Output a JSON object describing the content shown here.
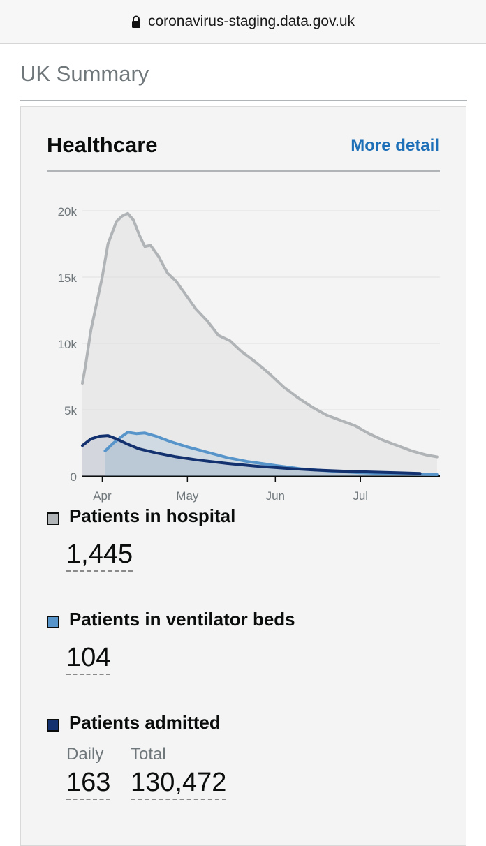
{
  "browser": {
    "url": "coronavirus-staging.data.gov.uk"
  },
  "page": {
    "title": "UK Summary"
  },
  "card": {
    "title": "Healthcare",
    "more_detail": "More detail"
  },
  "colors": {
    "hospital": "#b1b4b6",
    "ventilator": "#5694ca",
    "admitted": "#12316e",
    "link": "#1d70b8"
  },
  "metrics": {
    "hospital": {
      "label": "Patients in hospital",
      "value": "1,445"
    },
    "ventilator": {
      "label": "Patients in ventilator beds",
      "value": "104"
    },
    "admitted": {
      "label": "Patients admitted",
      "daily_label": "Daily",
      "daily_value": "163",
      "total_label": "Total",
      "total_value": "130,472"
    }
  },
  "chart_data": {
    "type": "area",
    "yticks": [
      "0",
      "5k",
      "10k",
      "15k",
      "20k"
    ],
    "ytick_values": [
      0,
      5000,
      10000,
      15000,
      20000
    ],
    "ylim": [
      0,
      20000
    ],
    "xticks": [
      "Apr",
      "May",
      "Jun",
      "Jul"
    ],
    "xtick_dates": [
      "2020-04-01",
      "2020-05-01",
      "2020-06-01",
      "2020-07-01"
    ],
    "xlim": [
      "2020-03-25",
      "2020-07-29"
    ],
    "grid": true,
    "series": [
      {
        "key": "hospital",
        "points": [
          [
            "2020-03-25",
            7000
          ],
          [
            "2020-03-26",
            8200
          ],
          [
            "2020-03-28",
            11000
          ],
          [
            "2020-03-30",
            13000
          ],
          [
            "2020-04-01",
            15000
          ],
          [
            "2020-04-03",
            17500
          ],
          [
            "2020-04-06",
            19200
          ],
          [
            "2020-04-08",
            19600
          ],
          [
            "2020-04-10",
            19800
          ],
          [
            "2020-04-12",
            19300
          ],
          [
            "2020-04-14",
            18200
          ],
          [
            "2020-04-16",
            17300
          ],
          [
            "2020-04-18",
            17400
          ],
          [
            "2020-04-21",
            16500
          ],
          [
            "2020-04-24",
            15300
          ],
          [
            "2020-04-27",
            14700
          ],
          [
            "2020-05-01",
            13500
          ],
          [
            "2020-05-04",
            12600
          ],
          [
            "2020-05-08",
            11700
          ],
          [
            "2020-05-12",
            10600
          ],
          [
            "2020-05-16",
            10200
          ],
          [
            "2020-05-20",
            9400
          ],
          [
            "2020-05-25",
            8600
          ],
          [
            "2020-05-30",
            7700
          ],
          [
            "2020-06-04",
            6700
          ],
          [
            "2020-06-09",
            5900
          ],
          [
            "2020-06-14",
            5200
          ],
          [
            "2020-06-19",
            4600
          ],
          [
            "2020-06-24",
            4200
          ],
          [
            "2020-06-29",
            3800
          ],
          [
            "2020-07-04",
            3200
          ],
          [
            "2020-07-09",
            2700
          ],
          [
            "2020-07-14",
            2300
          ],
          [
            "2020-07-19",
            1900
          ],
          [
            "2020-07-24",
            1600
          ],
          [
            "2020-07-28",
            1445
          ]
        ]
      },
      {
        "key": "ventilator",
        "points": [
          [
            "2020-04-02",
            1900
          ],
          [
            "2020-04-05",
            2500
          ],
          [
            "2020-04-08",
            3000
          ],
          [
            "2020-04-10",
            3300
          ],
          [
            "2020-04-13",
            3200
          ],
          [
            "2020-04-16",
            3250
          ],
          [
            "2020-04-20",
            3000
          ],
          [
            "2020-04-25",
            2600
          ],
          [
            "2020-05-01",
            2200
          ],
          [
            "2020-05-08",
            1800
          ],
          [
            "2020-05-15",
            1400
          ],
          [
            "2020-05-22",
            1100
          ],
          [
            "2020-06-01",
            800
          ],
          [
            "2020-06-10",
            550
          ],
          [
            "2020-06-20",
            380
          ],
          [
            "2020-07-01",
            250
          ],
          [
            "2020-07-10",
            180
          ],
          [
            "2020-07-20",
            140
          ],
          [
            "2020-07-28",
            104
          ]
        ]
      },
      {
        "key": "admitted",
        "points": [
          [
            "2020-03-25",
            2300
          ],
          [
            "2020-03-28",
            2800
          ],
          [
            "2020-03-31",
            3000
          ],
          [
            "2020-04-03",
            3050
          ],
          [
            "2020-04-06",
            2800
          ],
          [
            "2020-04-10",
            2400
          ],
          [
            "2020-04-14",
            2050
          ],
          [
            "2020-04-20",
            1750
          ],
          [
            "2020-04-27",
            1450
          ],
          [
            "2020-05-05",
            1200
          ],
          [
            "2020-05-15",
            950
          ],
          [
            "2020-05-25",
            750
          ],
          [
            "2020-06-05",
            580
          ],
          [
            "2020-06-15",
            450
          ],
          [
            "2020-06-25",
            370
          ],
          [
            "2020-07-05",
            300
          ],
          [
            "2020-07-15",
            240
          ],
          [
            "2020-07-22",
            200
          ]
        ]
      }
    ]
  }
}
